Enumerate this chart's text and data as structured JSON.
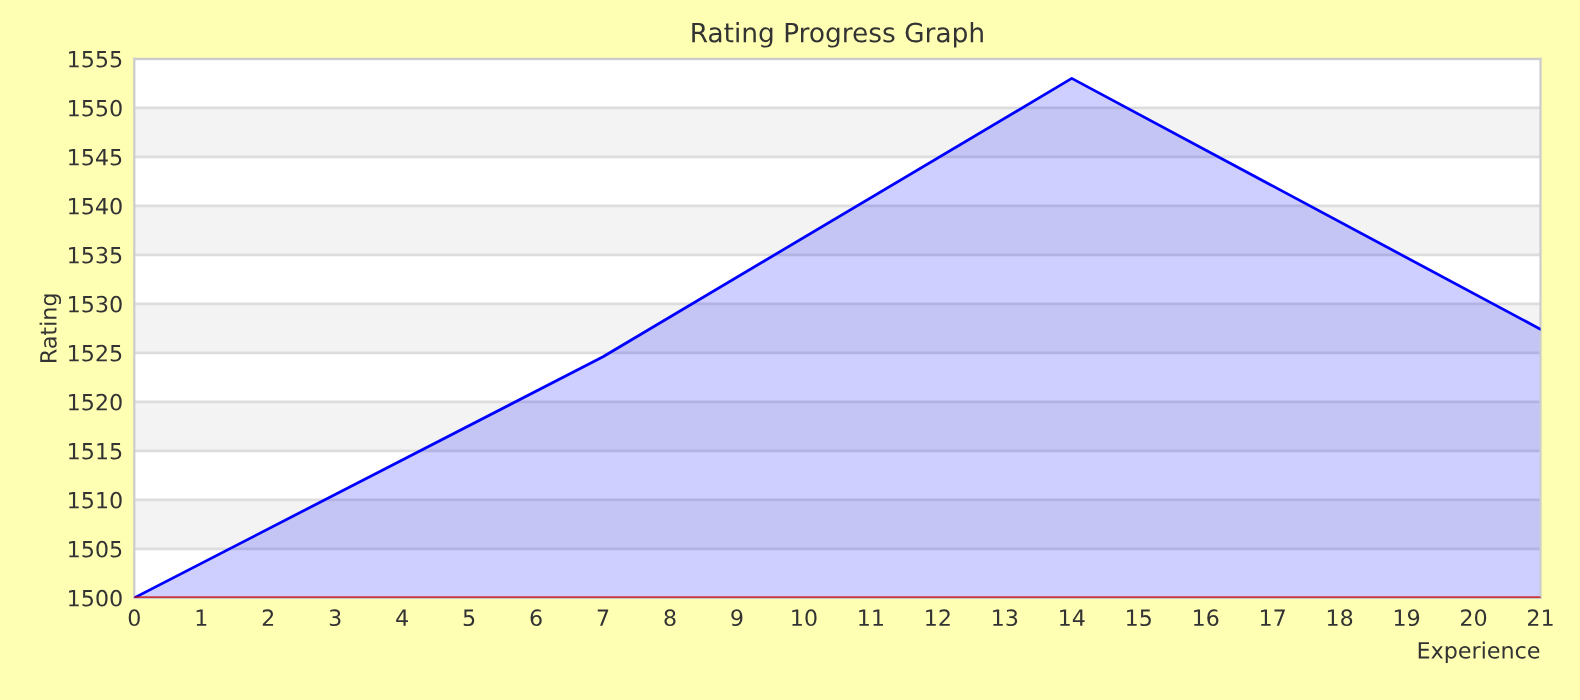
{
  "chart_data": {
    "type": "area",
    "title": "Rating Progress Graph",
    "xlabel": "Experience",
    "ylabel": "Rating",
    "x": [
      0,
      7,
      14,
      21
    ],
    "series": [
      {
        "color": "#0000ff",
        "values": [
          1500,
          1524.6,
          1553,
          1527.4
        ]
      }
    ],
    "xlim": [
      0,
      21
    ],
    "xticks": [
      0,
      1,
      2,
      3,
      4,
      5,
      6,
      7,
      8,
      9,
      10,
      11,
      12,
      13,
      14,
      15,
      16,
      17,
      18,
      19,
      20,
      21
    ],
    "ylim": [
      1500,
      1555
    ],
    "yticks": [
      1500,
      1505,
      1510,
      1515,
      1520,
      1525,
      1530,
      1535,
      1540,
      1545,
      1550,
      1555
    ],
    "ref_lines": [
      {
        "axis": "y",
        "value": 1500,
        "color": "#cc0000"
      }
    ],
    "grid": "y",
    "legend": false,
    "marker": "none",
    "line_style": "solid"
  }
}
